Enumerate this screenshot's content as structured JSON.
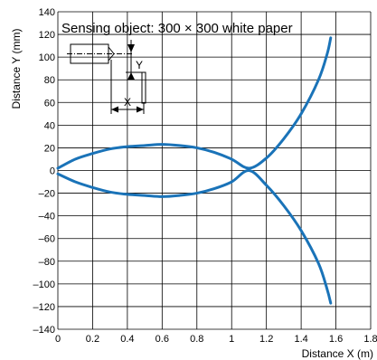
{
  "chart_data": {
    "type": "line",
    "title": "Sensing object: 300 × 300 white paper",
    "xlabel": "Distance X (m)",
    "ylabel": "Distance Y (mm)",
    "xlim": [
      0,
      1.8
    ],
    "ylim": [
      -140,
      140
    ],
    "x_ticks": [
      "0",
      "0.2",
      "0.4",
      "0.6",
      "0.8",
      "1",
      "1.2",
      "1.4",
      "1.6",
      "1.8"
    ],
    "y_ticks": [
      "140",
      "120",
      "100",
      "80",
      "60",
      "40",
      "20",
      "0",
      "–20",
      "–40",
      "–60",
      "–80",
      "–100",
      "–120",
      "–140"
    ],
    "grid": true,
    "series": [
      {
        "x": [
          0,
          0.1,
          0.2,
          0.3,
          0.4,
          0.5,
          0.6,
          0.7,
          0.8,
          0.9,
          1.0,
          1.1,
          1.2,
          1.3,
          1.4,
          1.5,
          1.55,
          1.57
        ],
        "y": [
          2,
          10,
          15,
          19,
          21,
          22,
          23,
          22,
          20,
          16,
          10,
          2,
          11,
          28,
          50,
          80,
          103,
          117
        ]
      },
      {
        "x": [
          0,
          0.1,
          0.2,
          0.3,
          0.4,
          0.5,
          0.6,
          0.7,
          0.8,
          0.9,
          1.0,
          1.1,
          1.2,
          1.3,
          1.4,
          1.5,
          1.55,
          1.57
        ],
        "y": [
          -3,
          -10,
          -15,
          -19,
          -21,
          -22,
          -23,
          -22,
          -20,
          -16,
          -10,
          0,
          -13,
          -31,
          -53,
          -82,
          -105,
          -117
        ]
      }
    ],
    "inset_labels": {
      "x": "X",
      "y": "Y"
    },
    "colors": {
      "series": "#1a73b8",
      "grid": "#000000"
    }
  }
}
